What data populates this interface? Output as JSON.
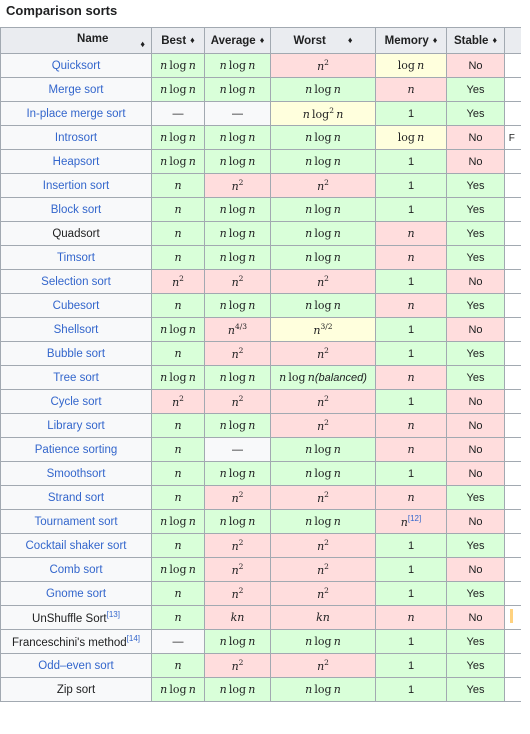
{
  "caption": "Comparison sorts",
  "headers": {
    "name": "Name",
    "best": "Best",
    "average": "Average",
    "worst": "Worst",
    "memory": "Memory",
    "stable": "Stable"
  },
  "sort_glyph": "♦",
  "cell_text": {
    "dash": "—",
    "one": "1",
    "balanced": "(balanced)"
  },
  "math_symbols": {
    "n": "n",
    "log": "log",
    "two": "2",
    "k": "k",
    "four_thirds": "4/3",
    "three_halves": "3/2"
  },
  "status_colors": {
    "good": "#d9ffd9",
    "bad": "#ffdddd",
    "intermediate": "#ffffdd",
    "neutral": "#f8f9fa",
    "link": "#3366cc"
  },
  "rows": [
    {
      "name": "Quicksort",
      "link": true,
      "best": "nlogn",
      "average": "nlogn",
      "worst": "n2",
      "memory": "logn",
      "stable": "No",
      "extra": ""
    },
    {
      "name": "Merge sort",
      "link": true,
      "best": "nlogn",
      "average": "nlogn",
      "worst": "nlogn",
      "memory": "n",
      "stable": "Yes",
      "extra": ""
    },
    {
      "name": "In-place merge sort",
      "link": true,
      "best": "dash",
      "average": "dash",
      "worst": "nlog2n",
      "memory": "1",
      "stable": "Yes",
      "extra": ""
    },
    {
      "name": "Introsort",
      "link": true,
      "best": "nlogn",
      "average": "nlogn",
      "worst": "nlogn",
      "memory": "logn",
      "stable": "No",
      "extra": "F"
    },
    {
      "name": "Heapsort",
      "link": true,
      "best": "nlogn",
      "average": "nlogn",
      "worst": "nlogn",
      "memory": "1",
      "stable": "No",
      "extra": ""
    },
    {
      "name": "Insertion sort",
      "link": true,
      "best": "n",
      "average": "n2",
      "worst": "n2",
      "memory": "1",
      "stable": "Yes",
      "extra": ""
    },
    {
      "name": "Block sort",
      "link": true,
      "best": "n",
      "average": "nlogn",
      "worst": "nlogn",
      "memory": "1",
      "stable": "Yes",
      "extra": ""
    },
    {
      "name": "Quadsort",
      "link": false,
      "best": "n",
      "average": "nlogn",
      "worst": "nlogn",
      "memory": "n",
      "stable": "Yes",
      "extra": ""
    },
    {
      "name": "Timsort",
      "link": true,
      "best": "n",
      "average": "nlogn",
      "worst": "nlogn",
      "memory": "n",
      "stable": "Yes",
      "extra": ""
    },
    {
      "name": "Selection sort",
      "link": true,
      "best": "n2",
      "average": "n2",
      "worst": "n2",
      "memory": "1",
      "stable": "No",
      "extra": ""
    },
    {
      "name": "Cubesort",
      "link": true,
      "best": "n",
      "average": "nlogn",
      "worst": "nlogn",
      "memory": "n",
      "stable": "Yes",
      "extra": ""
    },
    {
      "name": "Shellsort",
      "link": true,
      "best": "nlogn",
      "average": "n43",
      "worst": "n32",
      "memory": "1",
      "stable": "No",
      "extra": ""
    },
    {
      "name": "Bubble sort",
      "link": true,
      "best": "n",
      "average": "n2",
      "worst": "n2",
      "memory": "1",
      "stable": "Yes",
      "extra": ""
    },
    {
      "name": "Tree sort",
      "link": true,
      "best": "nlogn",
      "average": "nlogn",
      "worst": "nlognbal",
      "memory": "n",
      "stable": "Yes",
      "extra": ""
    },
    {
      "name": "Cycle sort",
      "link": true,
      "best": "n2",
      "average": "n2",
      "worst": "n2",
      "memory": "1",
      "stable": "No",
      "extra": ""
    },
    {
      "name": "Library sort",
      "link": true,
      "best": "n",
      "average": "nlogn",
      "worst": "n2",
      "memory": "n",
      "stable": "No",
      "extra": ""
    },
    {
      "name": "Patience sorting",
      "link": true,
      "best": "n",
      "average": "dash",
      "worst": "nlogn",
      "memory": "n",
      "stable": "No",
      "extra": ""
    },
    {
      "name": "Smoothsort",
      "link": true,
      "best": "n",
      "average": "nlogn",
      "worst": "nlogn",
      "memory": "1",
      "stable": "No",
      "extra": ""
    },
    {
      "name": "Strand sort",
      "link": true,
      "best": "n",
      "average": "n2",
      "worst": "n2",
      "memory": "n",
      "stable": "Yes",
      "extra": ""
    },
    {
      "name": "Tournament sort",
      "link": true,
      "best": "nlogn",
      "average": "nlogn",
      "worst": "nlogn",
      "memory": "n",
      "memory_ref": "[12]",
      "stable": "No",
      "extra": ""
    },
    {
      "name": "Cocktail shaker sort",
      "link": true,
      "best": "n",
      "average": "n2",
      "worst": "n2",
      "memory": "1",
      "stable": "Yes",
      "extra": ""
    },
    {
      "name": "Comb sort",
      "link": true,
      "best": "nlogn",
      "average": "n2",
      "worst": "n2",
      "memory": "1",
      "stable": "No",
      "extra": ""
    },
    {
      "name": "Gnome sort",
      "link": true,
      "best": "n",
      "average": "n2",
      "worst": "n2",
      "memory": "1",
      "stable": "Yes",
      "extra": ""
    },
    {
      "name": "UnShuffle Sort",
      "name_ref": "[13]",
      "link": false,
      "best": "n",
      "average": "kn",
      "worst": "kn",
      "memory": "n",
      "stable": "No",
      "extra": "warn"
    },
    {
      "name": "Franceschini's method",
      "name_ref": "[14]",
      "link": false,
      "best": "dash",
      "average": "nlogn",
      "worst": "nlogn",
      "memory": "1",
      "stable": "Yes",
      "extra": ""
    },
    {
      "name": "Odd–even sort",
      "link": true,
      "best": "n",
      "average": "n2",
      "worst": "n2",
      "memory": "1",
      "stable": "Yes",
      "extra": ""
    },
    {
      "name": "Zip sort",
      "link": false,
      "best": "nlogn",
      "average": "nlogn",
      "worst": "nlogn",
      "memory": "1",
      "stable": "Yes",
      "extra": ""
    }
  ]
}
